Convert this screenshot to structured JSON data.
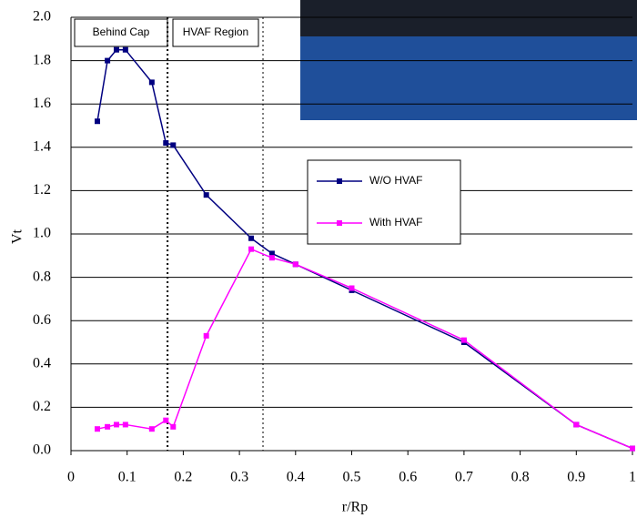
{
  "chart_data": {
    "type": "line",
    "x_label": "r/Rp",
    "y_label": "Vt",
    "annotations": [
      "Behind Cap",
      "HVAF Region"
    ],
    "vlines": [
      0.172,
      0.342
    ],
    "series": [
      {
        "name": "W/O HVAF",
        "color": "#000080",
        "x": [
          0.047,
          0.065,
          0.081,
          0.097,
          0.144,
          0.169,
          0.182,
          0.241,
          0.321,
          0.358,
          0.4,
          0.5,
          0.7,
          0.9,
          1.0
        ],
        "values": [
          1.52,
          1.8,
          1.85,
          1.85,
          1.7,
          1.42,
          1.41,
          1.18,
          0.98,
          0.91,
          0.86,
          0.74,
          0.5,
          0.12,
          0.01
        ]
      },
      {
        "name": "With HVAF",
        "color": "#ff00ff",
        "x": [
          0.047,
          0.065,
          0.081,
          0.097,
          0.144,
          0.169,
          0.182,
          0.241,
          0.321,
          0.358,
          0.4,
          0.5,
          0.7,
          0.9,
          1.0
        ],
        "values": [
          0.1,
          0.11,
          0.12,
          0.12,
          0.1,
          0.14,
          0.11,
          0.53,
          0.93,
          0.89,
          0.86,
          0.75,
          0.51,
          0.12,
          0.01
        ]
      }
    ],
    "xlim": [
      0,
      1
    ],
    "xticks": [
      0,
      0.1,
      0.2,
      0.3,
      0.4,
      0.5,
      0.6,
      0.7,
      0.8,
      0.9,
      1
    ],
    "ylim": [
      0,
      2
    ],
    "yticks": [
      {
        "value": 0,
        "label": "0.0"
      },
      0.2,
      0.4,
      0.6,
      0.8,
      {
        "value": 1,
        "label": "1.0"
      },
      1.2,
      1.4,
      1.6,
      1.8,
      {
        "value": 2,
        "label": "2.0"
      }
    ],
    "grid": true
  }
}
